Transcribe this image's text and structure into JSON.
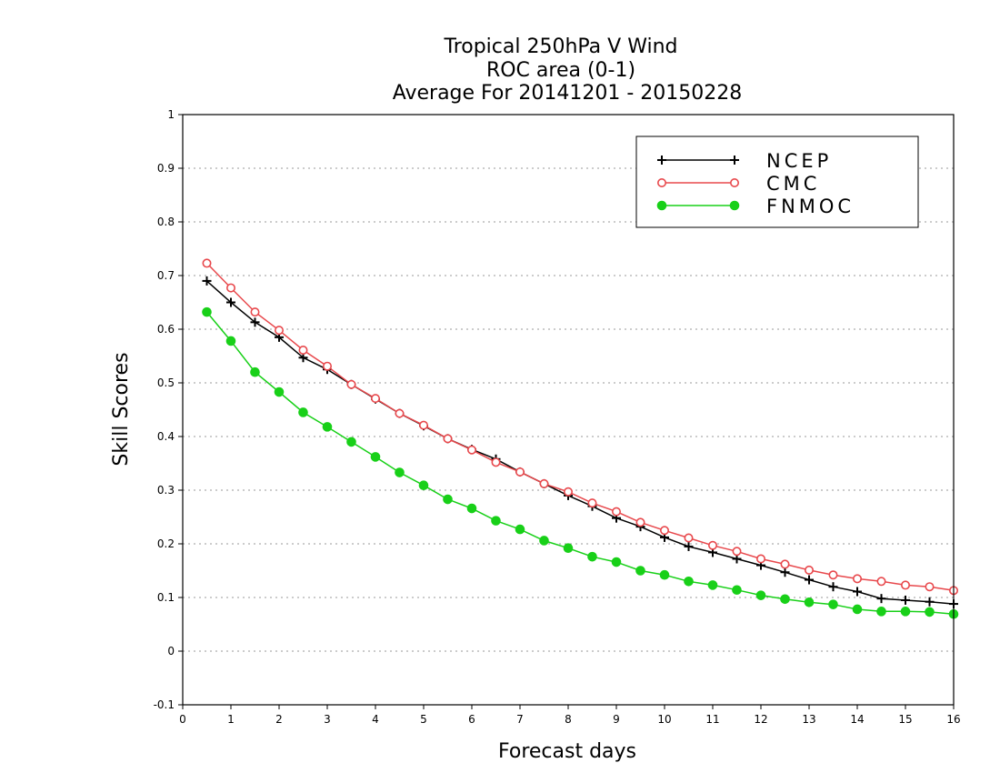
{
  "title": {
    "line1": "Tropical 250hPa V Wind",
    "line2": "ROC area (0-1)",
    "line3": "Average For 20141201 - 20150228"
  },
  "chart_data": {
    "type": "line",
    "title": "Tropical 250hPa V Wind / ROC area (0-1) / Average For 20141201 - 20150228",
    "xlabel": "Forecast days",
    "ylabel": "Skill Scores",
    "xlim": [
      0,
      16
    ],
    "ylim": [
      -0.1,
      1
    ],
    "xticks": [
      "0",
      "1",
      "2",
      "3",
      "4",
      "5",
      "6",
      "7",
      "8",
      "9",
      "10",
      "11",
      "12",
      "13",
      "14",
      "15",
      "16"
    ],
    "yticks": [
      "-0.1",
      "0",
      "0.1",
      "0.2",
      "0.3",
      "0.4",
      "0.5",
      "0.6",
      "0.7",
      "0.8",
      "0.9",
      "1"
    ],
    "grid": "horizontal dotted",
    "legend_position": "top-right",
    "x": [
      0.5,
      1,
      1.5,
      2,
      2.5,
      3,
      3.5,
      4,
      4.5,
      5,
      5.5,
      6,
      6.5,
      7,
      7.5,
      8,
      8.5,
      9,
      9.5,
      10,
      10.5,
      11,
      11.5,
      12,
      12.5,
      13,
      13.5,
      14,
      14.5,
      15,
      15.5,
      16
    ],
    "series": [
      {
        "name": "NCEP",
        "color": "#000000",
        "marker": "plus",
        "values": [
          0.69,
          0.65,
          0.613,
          0.585,
          0.547,
          0.525,
          0.497,
          0.47,
          0.443,
          0.42,
          0.396,
          0.376,
          0.358,
          0.334,
          0.312,
          0.29,
          0.27,
          0.248,
          0.232,
          0.212,
          0.195,
          0.184,
          0.172,
          0.16,
          0.147,
          0.133,
          0.12,
          0.111,
          0.098,
          0.095,
          0.092,
          0.088
        ]
      },
      {
        "name": "CMC",
        "color": "#e8484c",
        "marker": "open-circle",
        "values": [
          0.723,
          0.677,
          0.632,
          0.598,
          0.561,
          0.531,
          0.497,
          0.471,
          0.443,
          0.421,
          0.396,
          0.375,
          0.352,
          0.334,
          0.312,
          0.297,
          0.276,
          0.26,
          0.24,
          0.225,
          0.211,
          0.197,
          0.186,
          0.172,
          0.162,
          0.151,
          0.142,
          0.135,
          0.13,
          0.123,
          0.12,
          0.113
        ]
      },
      {
        "name": "FNMOC",
        "color": "#18d018",
        "marker": "filled-circle",
        "values": [
          0.632,
          0.578,
          0.52,
          0.483,
          0.445,
          0.418,
          0.39,
          0.362,
          0.333,
          0.309,
          0.283,
          0.266,
          0.243,
          0.227,
          0.206,
          0.192,
          0.176,
          0.166,
          0.15,
          0.142,
          0.13,
          0.123,
          0.114,
          0.104,
          0.097,
          0.091,
          0.087,
          0.078,
          0.074,
          0.074,
          0.073,
          0.069
        ]
      }
    ]
  }
}
